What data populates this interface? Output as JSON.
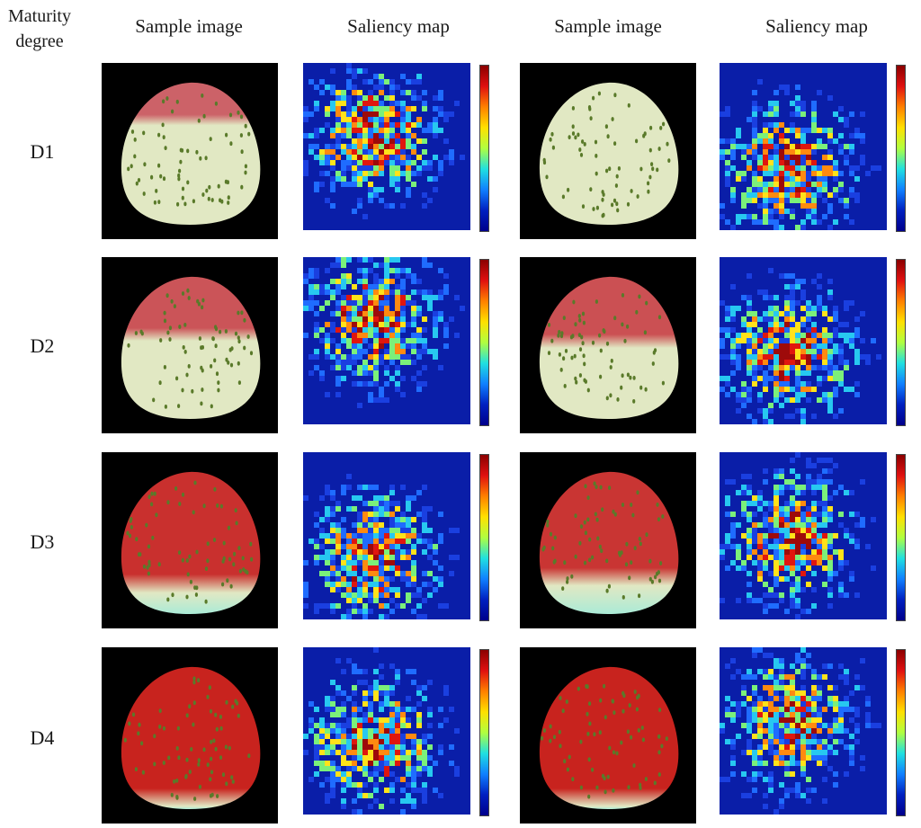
{
  "figure": {
    "col_headers": [
      "Maturity\ndegree",
      "Sample image",
      "Saliency map",
      "Sample image",
      "Saliency map"
    ],
    "maturity_first": "Maturity",
    "maturity_second": "degree",
    "rows": [
      {
        "label": "D1",
        "ripeness_left": 0.25,
        "ripeness_right": 0.0
      },
      {
        "label": "D2",
        "ripeness_left": 0.4,
        "ripeness_right": 0.45
      },
      {
        "label": "D3",
        "ripeness_left": 0.8,
        "ripeness_right": 0.75
      },
      {
        "label": "D4",
        "ripeness_left": 0.95,
        "ripeness_right": 0.95
      }
    ]
  }
}
